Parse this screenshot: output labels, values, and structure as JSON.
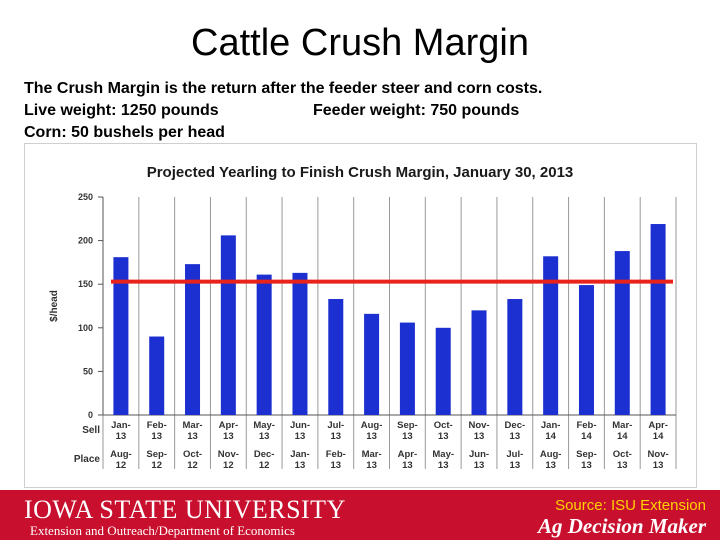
{
  "slide": {
    "title": "Cattle Crush Margin",
    "line1": "The Crush Margin is the return after the feeder steer and corn costs.",
    "line2a": "Live weight:  1250 pounds",
    "line2b": "Feeder weight:  750 pounds",
    "line3": "Corn:  50 bushels per head"
  },
  "footer": {
    "university": "IOWA STATE UNIVERSITY",
    "department": "Extension and Outreach/Department of Economics",
    "source": "Source: ISU Extension",
    "brand": "Ag Decision Maker"
  },
  "colors": {
    "bar": "#1c2fd0",
    "reference_line": "#e8231b",
    "footer": "#c8102e",
    "title": "#1a1a1a"
  },
  "chart_data": {
    "type": "bar",
    "title": "Projected Yearling to Finish Crush Margin, January 30, 2013",
    "ylabel": "$/head",
    "xlabel": "",
    "ylim": [
      0,
      250
    ],
    "yticks": [
      0,
      50,
      100,
      150,
      200,
      250
    ],
    "row_labels": [
      "Sell",
      "Place"
    ],
    "sell": [
      "Jan-13",
      "Feb-13",
      "Mar-13",
      "Apr-13",
      "May-13",
      "Jun-13",
      "Jul-13",
      "Aug-13",
      "Sep-13",
      "Oct-13",
      "Nov-13",
      "Dec-13",
      "Jan-14",
      "Feb-14",
      "Mar-14",
      "Apr-14"
    ],
    "place": [
      "Aug-12",
      "Sep-12",
      "Oct-12",
      "Nov-12",
      "Dec-12",
      "Jan-13",
      "Feb-13",
      "Mar-13",
      "Apr-13",
      "May-13",
      "Jun-13",
      "Jul-13",
      "Aug-13",
      "Sep-13",
      "Oct-13",
      "Nov-13"
    ],
    "values": [
      181,
      90,
      173,
      206,
      161,
      163,
      133,
      116,
      106,
      100,
      120,
      133,
      182,
      149,
      188,
      219
    ],
    "reference_line": 153,
    "grid": true
  }
}
